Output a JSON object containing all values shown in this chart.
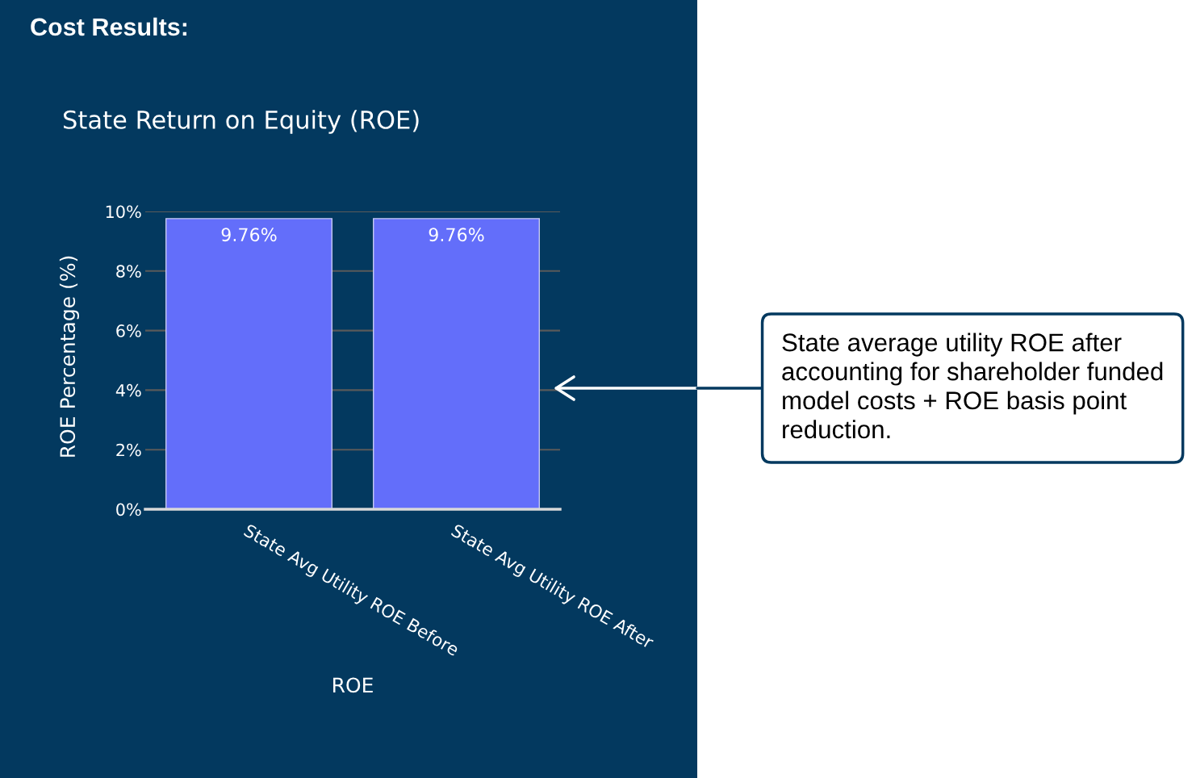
{
  "chart_data": {
    "type": "bar",
    "title": "Cost Results:",
    "subtitle": "State Return on Equity (ROE)",
    "xlabel": "ROE",
    "ylabel": "ROE Percentage (%)",
    "categories": [
      "State Avg Utility ROE Before",
      "State Avg Utility ROE After"
    ],
    "values": [
      9.76,
      9.76
    ],
    "color": "#636efa",
    "value_labels": [
      "9.76%",
      "9.76%"
    ],
    "ylim": [
      0,
      10
    ],
    "yticks": [
      {
        "value": 0,
        "label": "0%"
      },
      {
        "value": 2,
        "label": "2%"
      },
      {
        "value": 4,
        "label": "4%"
      },
      {
        "value": 6,
        "label": "6%"
      },
      {
        "value": 8,
        "label": "8%"
      },
      {
        "value": 10,
        "label": "10%"
      }
    ],
    "grid": "y",
    "annotations": [
      "State average utility ROE after accounting for shareholder funded model costs + ROE basis point reduction."
    ]
  }
}
